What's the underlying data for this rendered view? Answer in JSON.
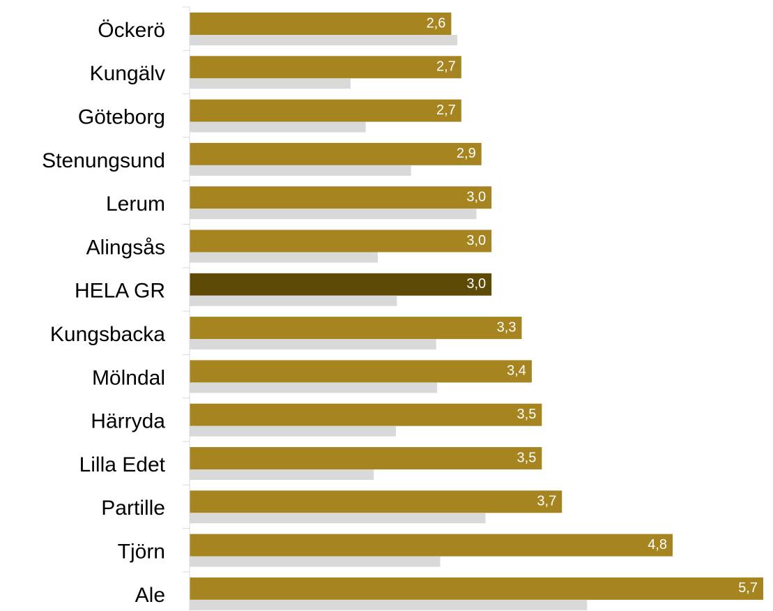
{
  "chart_data": {
    "type": "bar",
    "orientation": "horizontal",
    "categories": [
      "Öckerö",
      "Kungälv",
      "Göteborg",
      "Stenungsund",
      "Lerum",
      "Alingsås",
      "HELA GR",
      "Kungsbacka",
      "Mölndal",
      "Härryda",
      "Lilla Edet ",
      "Partille",
      "Tjörn",
      "Ale"
    ],
    "series": [
      {
        "color": "#a6841f",
        "colors": [
          "#a6841f",
          "#a6841f",
          "#a6841f",
          "#a6841f",
          "#a6841f",
          "#a6841f",
          "#5e4a07",
          "#a6841f",
          "#a6841f",
          "#a6841f",
          "#a6841f",
          "#a6841f",
          "#a6841f",
          "#a6841f"
        ],
        "values": [
          2.6,
          2.7,
          2.7,
          2.9,
          3.0,
          3.0,
          3.0,
          3.3,
          3.4,
          3.5,
          3.5,
          3.7,
          4.8,
          5.7
        ],
        "value_labels": [
          "2,6",
          "2,7",
          "2,7",
          "2,9",
          "3,0",
          "3,0",
          "3,0",
          "3,3",
          "3,4",
          "3,5",
          "3,5",
          "3,7",
          "4,8",
          "5,7"
        ]
      },
      {
        "color": "#d9d9d9",
        "values": [
          2.66,
          1.6,
          1.75,
          2.2,
          2.85,
          1.87,
          2.06,
          2.45,
          2.46,
          2.05,
          1.83,
          2.94,
          2.49,
          3.95
        ]
      }
    ],
    "xlim": [
      0,
      5.7
    ]
  }
}
